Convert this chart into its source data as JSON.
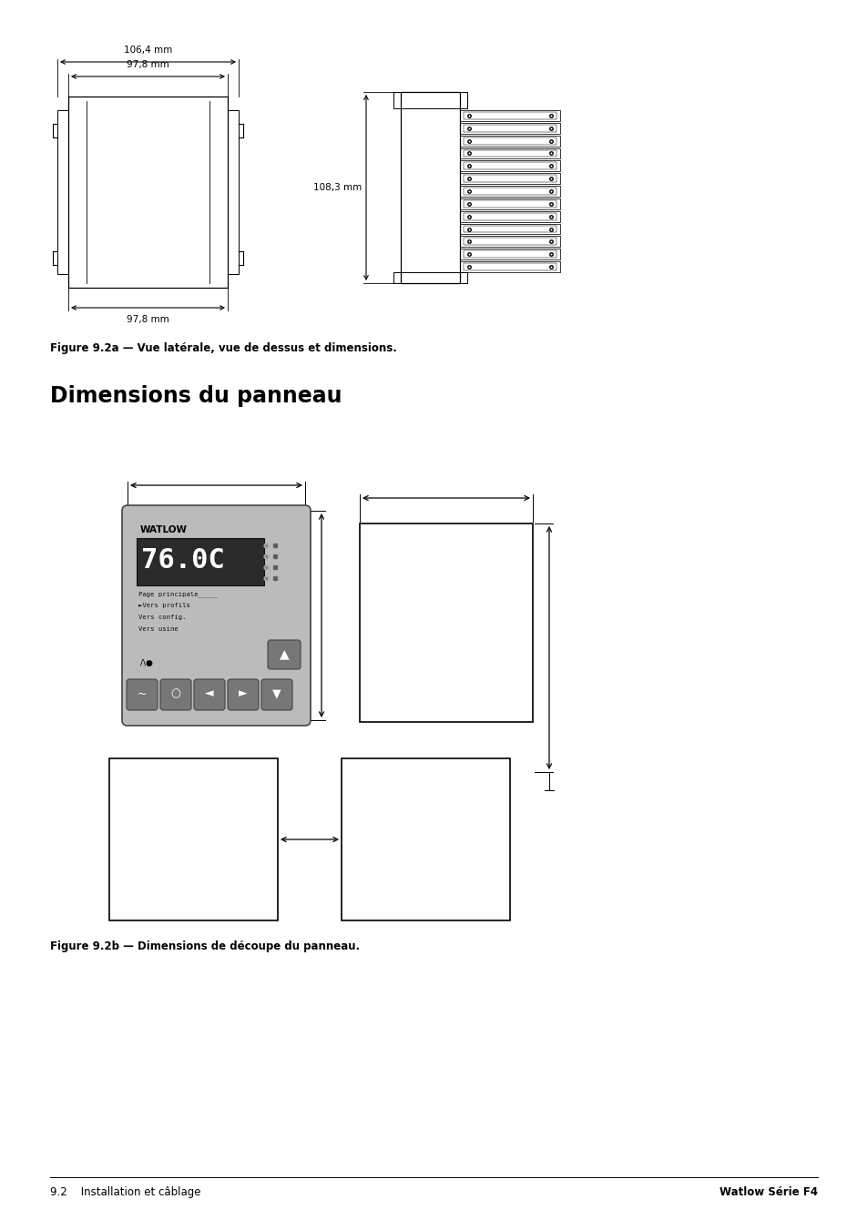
{
  "page_bg": "#ffffff",
  "title_section": "Dimensions du panneau",
  "fig2a_caption": "Figure 9.2a — Vue latérale, vue de dessus et dimensions.",
  "fig2b_caption": "Figure 9.2b — Dimensions de découpe du panneau.",
  "footer_left": "9.2    Installation et câblage",
  "footer_right": "Watlow Série F4",
  "dim_106_4": "106,4 mm",
  "dim_97_8_top": "97,8 mm",
  "dim_97_8_bot": "97,8 mm",
  "dim_108_3": "108,3 mm",
  "text_color": "#000000",
  "line_color": "#000000",
  "device_bg": "#bbbbbb",
  "display_bg": "#2a2a2a",
  "display_text": "76.0C",
  "watlow_text": "WATLOW",
  "menu_lines": [
    "Page principale_____",
    "►Vers profils",
    "Vers config.",
    "Vers usine"
  ],
  "screen_area_bg": "#9a9a9a"
}
